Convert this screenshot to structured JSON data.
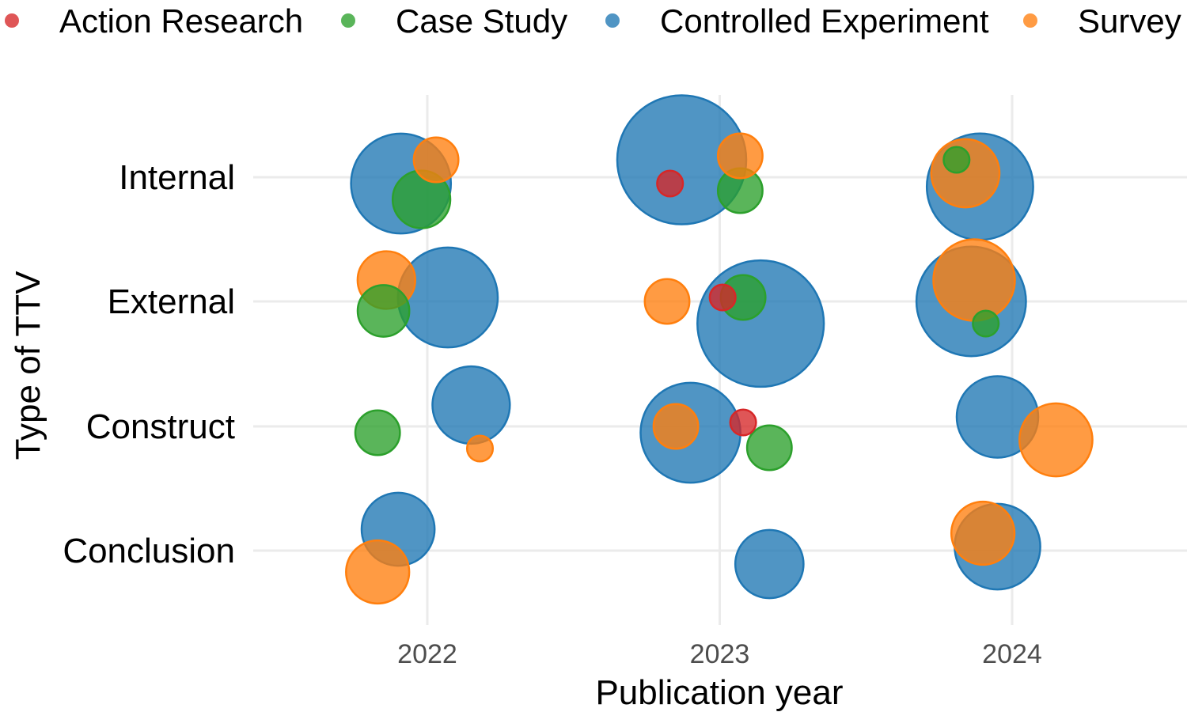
{
  "chart_data": {
    "type": "scatter",
    "subtype": "bubble",
    "xlabel": "Publication year",
    "ylabel": "Type of TTV",
    "x_ticks": [
      "2022",
      "2023",
      "2024"
    ],
    "y_categories": [
      "Conclusion",
      "Construct",
      "External",
      "Internal"
    ],
    "legend_position": "top",
    "grid": true,
    "series": [
      {
        "name": "Action Research",
        "color": "#d62728",
        "points": [
          {
            "x": 2022.83,
            "y": "Internal",
            "size": 1
          },
          {
            "x": 2023.01,
            "y": "External",
            "size": 1
          },
          {
            "x": 2023.08,
            "y": "Construct",
            "size": 1
          }
        ]
      },
      {
        "name": "Case Study",
        "color": "#2ca02c",
        "points": [
          {
            "x": 2021.98,
            "y": "Internal",
            "size": 5
          },
          {
            "x": 2023.07,
            "y": "Internal",
            "size": 3
          },
          {
            "x": 2023.81,
            "y": "Internal",
            "size": 1
          },
          {
            "x": 2021.85,
            "y": "External",
            "size": 4
          },
          {
            "x": 2023.08,
            "y": "External",
            "size": 3
          },
          {
            "x": 2023.91,
            "y": "External",
            "size": 1
          },
          {
            "x": 2021.83,
            "y": "Construct",
            "size": 3
          },
          {
            "x": 2023.17,
            "y": "Construct",
            "size": 3
          }
        ]
      },
      {
        "name": "Controlled Experiment",
        "color": "#1f77b4",
        "points": [
          {
            "x": 2021.91,
            "y": "Internal",
            "size": 15
          },
          {
            "x": 2022.87,
            "y": "Internal",
            "size": 25
          },
          {
            "x": 2023.89,
            "y": "Internal",
            "size": 17
          },
          {
            "x": 2022.07,
            "y": "External",
            "size": 15
          },
          {
            "x": 2023.14,
            "y": "External",
            "size": 24
          },
          {
            "x": 2023.86,
            "y": "External",
            "size": 18
          },
          {
            "x": 2022.15,
            "y": "Construct",
            "size": 9
          },
          {
            "x": 2022.9,
            "y": "Construct",
            "size": 15
          },
          {
            "x": 2023.95,
            "y": "Construct",
            "size": 10
          },
          {
            "x": 2021.9,
            "y": "Conclusion",
            "size": 8
          },
          {
            "x": 2023.17,
            "y": "Conclusion",
            "size": 7
          },
          {
            "x": 2023.95,
            "y": "Conclusion",
            "size": 11
          }
        ]
      },
      {
        "name": "Survey",
        "color": "#ff7f0e",
        "points": [
          {
            "x": 2022.03,
            "y": "Internal",
            "size": 3
          },
          {
            "x": 2023.07,
            "y": "Internal",
            "size": 3
          },
          {
            "x": 2023.84,
            "y": "Internal",
            "size": 7
          },
          {
            "x": 2021.86,
            "y": "External",
            "size": 5
          },
          {
            "x": 2022.82,
            "y": "External",
            "size": 3
          },
          {
            "x": 2023.87,
            "y": "External",
            "size": 10
          },
          {
            "x": 2022.18,
            "y": "Construct",
            "size": 1
          },
          {
            "x": 2022.85,
            "y": "Construct",
            "size": 3
          },
          {
            "x": 2024.15,
            "y": "Construct",
            "size": 8
          },
          {
            "x": 2021.83,
            "y": "Conclusion",
            "size": 6
          },
          {
            "x": 2023.9,
            "y": "Conclusion",
            "size": 6
          }
        ]
      }
    ]
  }
}
